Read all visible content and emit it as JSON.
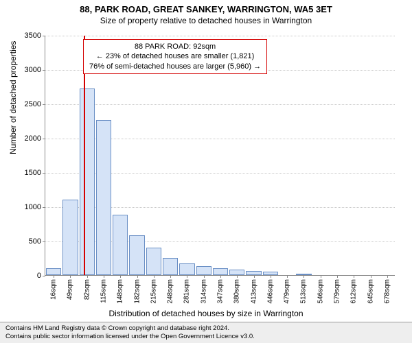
{
  "title": "88, PARK ROAD, GREAT SANKEY, WARRINGTON, WA5 3ET",
  "subtitle": "Size of property relative to detached houses in Warrington",
  "chart": {
    "type": "histogram",
    "y_axis_title": "Number of detached properties",
    "x_axis_title": "Distribution of detached houses by size in Warrington",
    "ylim_max": 3500,
    "y_ticks": [
      0,
      500,
      1000,
      1500,
      2000,
      2500,
      3000,
      3500
    ],
    "x_ticks": [
      "16sqm",
      "49sqm",
      "82sqm",
      "115sqm",
      "148sqm",
      "182sqm",
      "215sqm",
      "248sqm",
      "281sqm",
      "314sqm",
      "347sqm",
      "380sqm",
      "413sqm",
      "446sqm",
      "479sqm",
      "513sqm",
      "546sqm",
      "579sqm",
      "612sqm",
      "645sqm",
      "678sqm"
    ],
    "bar_fill": "#d5e3f7",
    "bar_stroke": "#6a8fc5",
    "grid_color": "#c8c8c8",
    "axis_color": "#888888",
    "background": "#ffffff",
    "bars": [
      100,
      1100,
      2720,
      2260,
      880,
      580,
      400,
      250,
      170,
      130,
      100,
      80,
      60,
      50,
      0,
      10,
      0,
      0,
      0,
      0,
      0
    ],
    "marker_value_x_index": 2.3,
    "marker_color": "#d40000",
    "annotation": {
      "line1": "88 PARK ROAD: 92sqm",
      "line2": "← 23% of detached houses are smaller (1,821)",
      "line3": "76% of semi-detached houses are larger (5,960) →",
      "border_color": "#d40000"
    }
  },
  "footer": {
    "border_color": "#999999",
    "bg_color": "#eeeeee",
    "line1": "Contains HM Land Registry data © Crown copyright and database right 2024.",
    "line2": "Contains public sector information licensed under the Open Government Licence v3.0."
  }
}
